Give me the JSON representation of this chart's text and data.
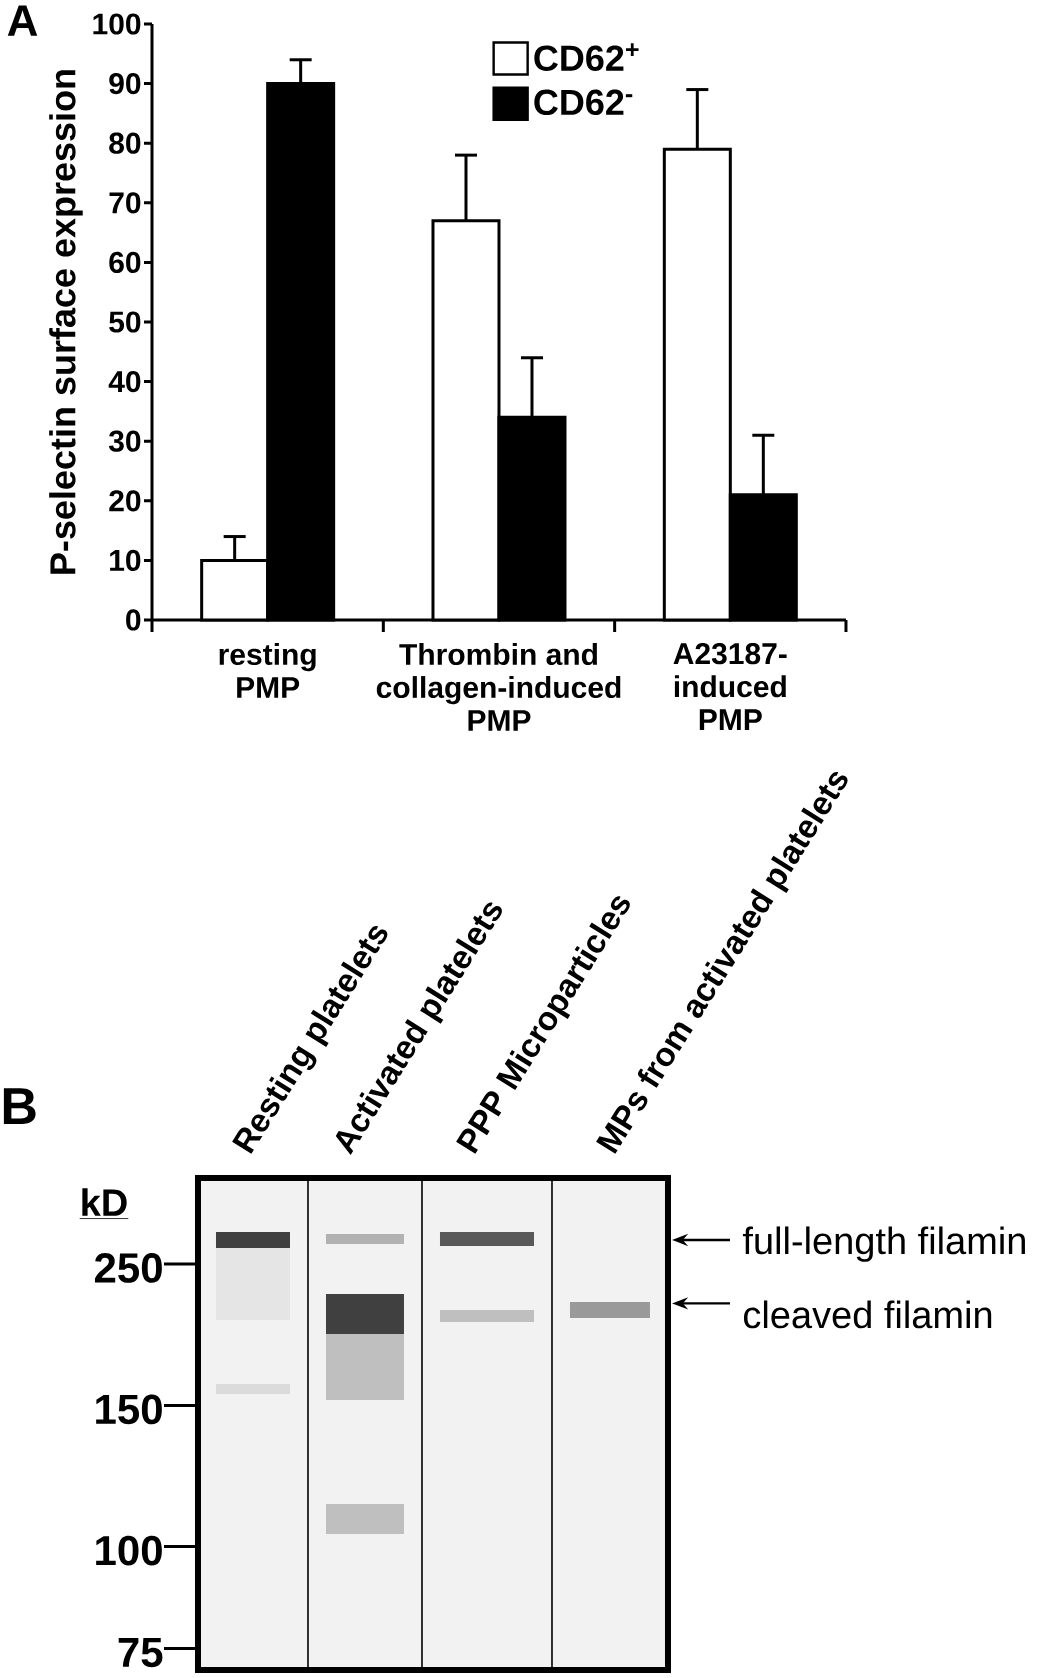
{
  "chart_data": [
    {
      "type": "bar",
      "title": "A",
      "ylabel": "P-selectin surface expression",
      "categories": [
        "resting\nPMP",
        "Thrombin and\ncollagen-induced\nPMP",
        "A23187-\ninduced\nPMP"
      ],
      "series": [
        {
          "name": "CD62$^{+}$",
          "color": "#ffffff",
          "values": [
            10,
            67,
            79
          ],
          "errors": [
            [
              10,
              14
            ],
            [
              67,
              78
            ],
            [
              79,
              89
            ]
          ]
        },
        {
          "name": "CD62$^{-}$",
          "color": "#000000",
          "values": [
            90,
            34,
            21
          ],
          "errors": [
            [
              90,
              94
            ],
            [
              34,
              44
            ],
            [
              21,
              31
            ]
          ]
        }
      ],
      "ylim": [
        0,
        100
      ],
      "yticks": [
        0,
        10,
        20,
        30,
        40,
        50,
        60,
        70,
        80,
        90,
        100
      ],
      "legend": "top"
    },
    {
      "type": "other",
      "title": "B",
      "categories": [
        "Resting platelets",
        "Activated platelets",
        "PPP Microparticles",
        "MPs from activated platelets"
      ],
      "ylabel": "kD",
      "annotations": [
        "250",
        "150",
        "100",
        "75",
        "full-length filamin",
        "cleaved filamin"
      ]
    }
  ]
}
